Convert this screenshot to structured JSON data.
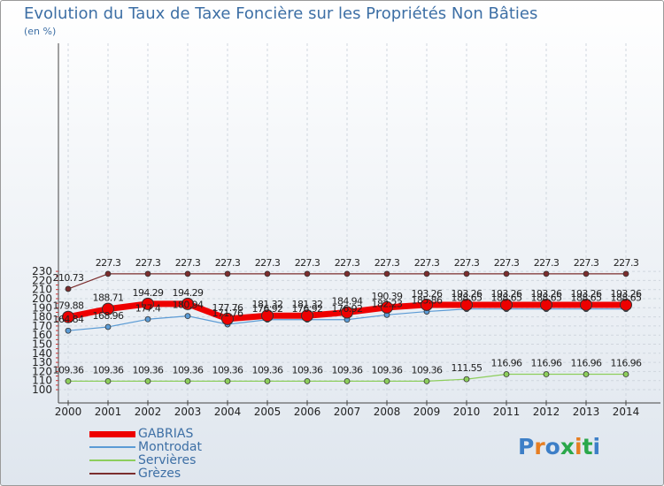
{
  "title": "Evolution du Taux de Taxe Foncière sur les Propriétés Non Bâties",
  "unit_label": "(en %)",
  "brand": {
    "logo_text": "Proxiti"
  },
  "chart_data": {
    "type": "line",
    "x": [
      2000,
      2001,
      2002,
      2003,
      2004,
      2005,
      2006,
      2007,
      2008,
      2009,
      2010,
      2011,
      2012,
      2013,
      2014
    ],
    "ylim": [
      100,
      230
    ],
    "yticks": [
      100,
      110,
      120,
      130,
      140,
      150,
      160,
      170,
      180,
      190,
      200,
      210,
      220,
      230
    ],
    "grid": true,
    "legend_position": "bottom-left",
    "series": [
      {
        "name": "Grèzes",
        "color": "#7b2d2d",
        "values": [
          210.73,
          227.3,
          227.3,
          227.3,
          227.3,
          227.3,
          227.3,
          227.3,
          227.3,
          227.3,
          227.3,
          227.3,
          227.3,
          227.3,
          227.3
        ],
        "labels": [
          "210.73",
          "227.3",
          "227.3",
          "227.3",
          "227.3",
          "227.3",
          "227.3",
          "227.3",
          "227.3",
          "227.3",
          "227.3",
          "227.3",
          "227.3",
          "227.3",
          "227.3"
        ]
      },
      {
        "name": "Servières",
        "color": "#8dce5c",
        "values": [
          109.36,
          109.36,
          109.36,
          109.36,
          109.36,
          109.36,
          109.36,
          109.36,
          109.36,
          109.36,
          111.55,
          116.96,
          116.96,
          116.96,
          116.96
        ],
        "labels": [
          "109.36",
          "109.36",
          "109.36",
          "109.36",
          "109.36",
          "109.36",
          "109.36",
          "109.36",
          "109.36",
          "109.36",
          "111.55",
          "116.96",
          "116.96",
          "116.96",
          "116.96"
        ]
      },
      {
        "name": "Montrodat",
        "color": "#5b9bd5",
        "values": [
          164.84,
          168.96,
          177.4,
          180.94,
          171.76,
          176.92,
          176.92,
          176.92,
          182.23,
          185.86,
          188.65,
          188.65,
          188.65,
          188.65,
          188.65
        ],
        "labels": [
          "164.84",
          "168.96",
          "177.4",
          "180.94",
          "171.76",
          "176.92",
          "176.92",
          "176.92",
          "182.23",
          "185.86",
          "188.65",
          "188.65",
          "188.65",
          "188.65",
          "188.65"
        ]
      },
      {
        "name": "GABRIAS",
        "color": "#ee0000",
        "values": [
          179.88,
          188.71,
          194.29,
          194.29,
          177.76,
          181.32,
          181.32,
          184.94,
          190.39,
          193.26,
          193.26,
          193.26,
          193.26,
          193.26,
          193.26
        ],
        "labels": [
          "179.88",
          "188.71",
          "194.29",
          "194.29",
          "177.76",
          "181.32",
          "181.32",
          "184.94",
          "190.39",
          "193.26",
          "193.26",
          "193.26",
          "193.26",
          "193.26",
          "193.26"
        ]
      }
    ],
    "legend": [
      "GABRIAS",
      "Montrodat",
      "Servières",
      "Grèzes"
    ]
  }
}
